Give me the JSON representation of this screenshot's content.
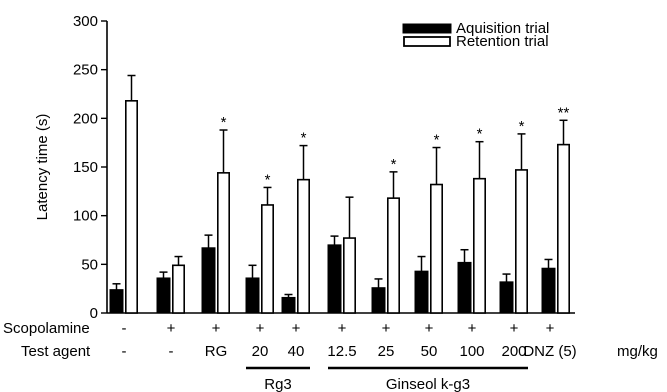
{
  "chart_data": {
    "type": "bar",
    "ylabel": "Latency time (s)",
    "ylim": [
      0,
      300
    ],
    "yticks": [
      0,
      50,
      100,
      150,
      200,
      250,
      300
    ],
    "grid": false,
    "legend_position": "top-right",
    "categories": [
      "-",
      "-",
      "RG",
      "20",
      "40",
      "12.5",
      "25",
      "50",
      "100",
      "200",
      "DNZ (5)"
    ],
    "scopolamine": [
      "-",
      "+",
      "+",
      "+",
      "+",
      "+",
      "+",
      "+",
      "+",
      "+",
      "+"
    ],
    "row_labels": {
      "scopolamine": "Scopolamine",
      "test_agent": "Test agent",
      "unit": "mg/kg"
    },
    "series": [
      {
        "name": "Aquisition trial",
        "color": "#000000",
        "values": [
          24,
          36,
          67,
          36,
          16,
          70,
          26,
          43,
          52,
          32,
          46
        ],
        "errors": [
          6,
          6,
          13,
          13,
          3,
          9,
          9,
          15,
          13,
          8,
          9
        ]
      },
      {
        "name": "Retention trial",
        "color": "#ffffff",
        "values": [
          218,
          49,
          144,
          111,
          137,
          77,
          118,
          132,
          138,
          147,
          173
        ],
        "errors": [
          26,
          9,
          44,
          18,
          35,
          42,
          27,
          38,
          38,
          37,
          25
        ]
      }
    ],
    "significance": [
      "",
      "",
      "*",
      "*",
      "*",
      "",
      "*",
      "*",
      "*",
      "*",
      "**"
    ],
    "groups": [
      {
        "label": "Rg3",
        "from": 3,
        "to": 4
      },
      {
        "label": "Ginseol k-g3",
        "from": 5,
        "to": 9
      }
    ]
  }
}
